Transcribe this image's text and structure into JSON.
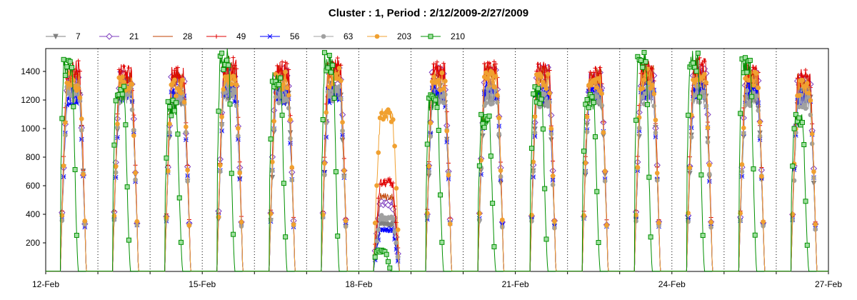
{
  "chart_data": {
    "type": "line",
    "title": "Cluster : 1, Period : 2/12/2009-2/27/2009",
    "xlabel": "",
    "ylabel": "",
    "x_ticks": [
      "12-Feb",
      "15-Feb",
      "18-Feb",
      "21-Feb",
      "24-Feb",
      "27-Feb"
    ],
    "x_range": [
      "2009-02-12",
      "2009-02-27"
    ],
    "y_ticks": [
      200,
      400,
      600,
      800,
      1000,
      1200,
      1400
    ],
    "ylim": [
      0,
      1560
    ],
    "grid": "vertical dotted at each day",
    "legend_position": "top",
    "day_peaks": [
      "2009-02-12",
      "2009-02-13",
      "2009-02-14",
      "2009-02-15",
      "2009-02-16",
      "2009-02-17",
      "2009-02-18",
      "2009-02-19",
      "2009-02-20",
      "2009-02-21",
      "2009-02-22",
      "2009-02-23",
      "2009-02-24",
      "2009-02-25",
      "2009-02-26"
    ],
    "series": [
      {
        "name": "7",
        "color": "#808080",
        "marker": "triangle-down",
        "daily_peak": [
          1350,
          1330,
          1300,
          1320,
          1300,
          1330,
          350,
          1320,
          1300,
          1280,
          1300,
          1320,
          1300,
          1300,
          1300
        ]
      },
      {
        "name": "21",
        "color": "#7f3fbf",
        "marker": "diamond",
        "daily_peak": [
          1420,
          1420,
          1400,
          1450,
          1430,
          1450,
          500,
          1430,
          1440,
          1440,
          1400,
          1430,
          1440,
          1400,
          1390
        ]
      },
      {
        "name": "28",
        "color": "#c04000",
        "marker": "none",
        "daily_peak": [
          1450,
          1420,
          1420,
          1470,
          1450,
          1480,
          550,
          1450,
          1460,
          1450,
          1420,
          1450,
          1470,
          1420,
          1400
        ]
      },
      {
        "name": "49",
        "color": "#e00000",
        "marker": "plus",
        "daily_peak": [
          1480,
          1450,
          1440,
          1500,
          1470,
          1500,
          650,
          1470,
          1480,
          1470,
          1440,
          1480,
          1500,
          1450,
          1420
        ]
      },
      {
        "name": "56",
        "color": "#0000ff",
        "marker": "asterisk",
        "daily_peak": [
          1300,
          1300,
          1300,
          1320,
          1300,
          1310,
          300,
          1320,
          1340,
          1300,
          1320,
          1330,
          1320,
          1320,
          1280
        ]
      },
      {
        "name": "63",
        "color": "#a0a0a0",
        "marker": "circle",
        "daily_peak": [
          1320,
          1300,
          1280,
          1330,
          1300,
          1320,
          400,
          1310,
          1300,
          1270,
          1300,
          1300,
          1300,
          1280,
          1260
        ]
      },
      {
        "name": "203",
        "color": "#f0a030",
        "marker": "circle",
        "daily_peak": [
          1400,
          1380,
          1360,
          1420,
          1400,
          1430,
          1150,
          1400,
          1420,
          1400,
          1380,
          1420,
          1420,
          1400,
          1360
        ]
      },
      {
        "name": "210",
        "color": "#009000",
        "marker": "square",
        "daily_peak": [
          1520,
          1300,
          1200,
          1560,
          1400,
          1540,
          150,
          1250,
          1100,
          1300,
          1250,
          1540,
          1550,
          1530,
          1100
        ]
      }
    ]
  }
}
